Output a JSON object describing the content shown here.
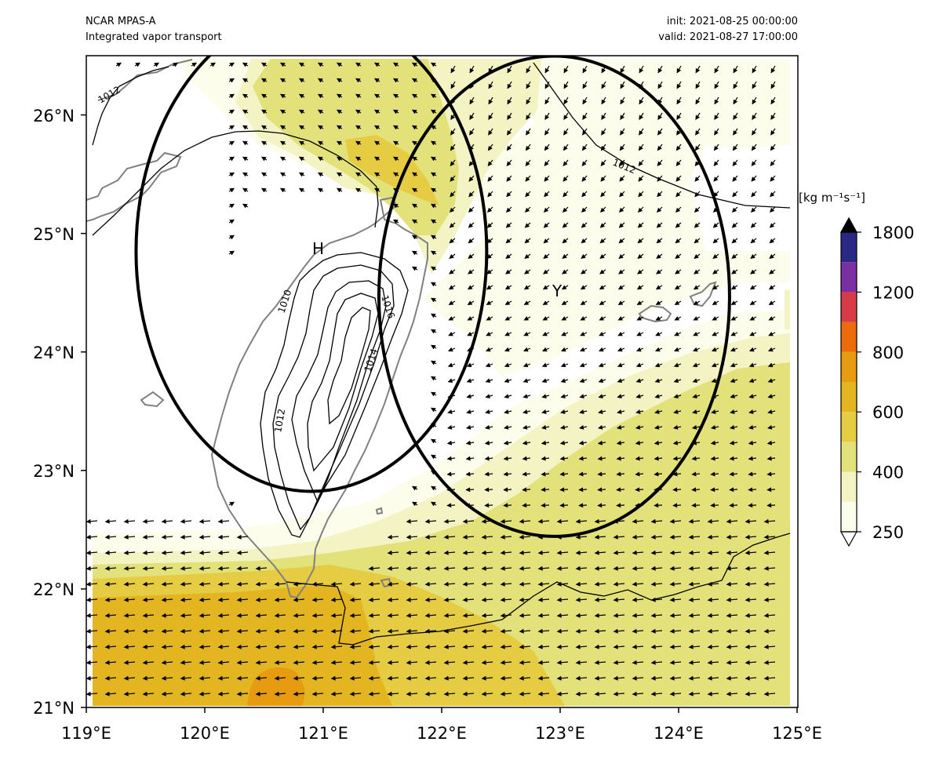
{
  "header": {
    "model": "NCAR MPAS-A",
    "field": "Integrated vapor transport",
    "init": "init: 2021-08-25 00:00:00",
    "valid": "valid: 2021-08-27 17:00:00"
  },
  "map": {
    "lon_range": [
      119,
      125
    ],
    "lat_range": [
      21,
      26.5
    ],
    "x_ticks": [
      {
        "value": 119,
        "label": "119°E"
      },
      {
        "value": 120,
        "label": "120°E"
      },
      {
        "value": 121,
        "label": "121°E"
      },
      {
        "value": 122,
        "label": "122°E"
      },
      {
        "value": 123,
        "label": "123°E"
      },
      {
        "value": 124,
        "label": "124°E"
      },
      {
        "value": 125,
        "label": "125°E"
      }
    ],
    "y_ticks": [
      {
        "value": 26,
        "label": "26°N"
      },
      {
        "value": 25,
        "label": "25°N"
      },
      {
        "value": 24,
        "label": "24°N"
      },
      {
        "value": 23,
        "label": "23°N"
      },
      {
        "value": 22,
        "label": "22°N"
      },
      {
        "value": 21,
        "label": "21°N"
      }
    ],
    "markers": [
      {
        "label": "H",
        "lon": 120.9,
        "lat": 24.85
      },
      {
        "label": "Y",
        "lon": 122.9,
        "lat": 24.5
      }
    ],
    "circles": [
      {
        "lon": 120.9,
        "lat": 24.85,
        "radius_deg": 1.48
      },
      {
        "lon": 122.95,
        "lat": 24.47,
        "radius_deg": 1.48
      }
    ],
    "isobar_labels": [
      "1012",
      "1012",
      "1010",
      "1012",
      "1014",
      "1016"
    ]
  },
  "colorbar": {
    "unit_label": "[kg m⁻¹s⁻¹]",
    "levels": [
      250,
      300,
      400,
      500,
      600,
      700,
      800,
      1000,
      1200,
      1500,
      1800
    ],
    "colors": [
      "#fcfdeb",
      "#f3f3c4",
      "#e2e17a",
      "#e6cc43",
      "#e3b621",
      "#e69b10",
      "#ec6c0d",
      "#d63b47",
      "#7a2fa3",
      "#2a2885"
    ],
    "extend_low_color": "#ffffff",
    "extend_high_color": "#000000",
    "tick_labels": [
      {
        "value": 250,
        "label": "250"
      },
      {
        "value": 400,
        "label": "400"
      },
      {
        "value": 600,
        "label": "600"
      },
      {
        "value": 800,
        "label": "800"
      },
      {
        "value": 1200,
        "label": "1200"
      },
      {
        "value": 1800,
        "label": "1800"
      }
    ]
  }
}
